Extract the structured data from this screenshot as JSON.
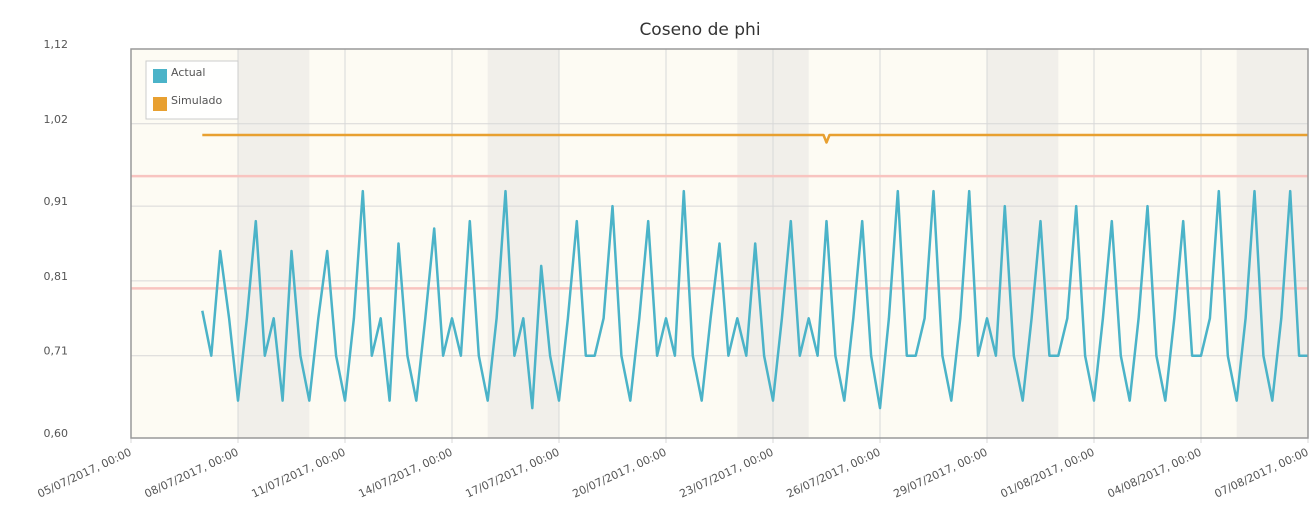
{
  "chart_data": {
    "type": "line",
    "title": "Coseno de phi",
    "xlim": [
      "2017-07-05 00:00",
      "2017-08-07 00:00"
    ],
    "xticks": [
      {
        "value": "2017-07-05 00:00",
        "label": "05/07/2017, 00:00"
      },
      {
        "value": "2017-07-08 00:00",
        "label": "08/07/2017, 00:00"
      },
      {
        "value": "2017-07-11 00:00",
        "label": "11/07/2017, 00:00"
      },
      {
        "value": "2017-07-14 00:00",
        "label": "14/07/2017, 00:00"
      },
      {
        "value": "2017-07-17 00:00",
        "label": "17/07/2017, 00:00"
      },
      {
        "value": "2017-07-20 00:00",
        "label": "20/07/2017, 00:00"
      },
      {
        "value": "2017-07-23 00:00",
        "label": "23/07/2017, 00:00"
      },
      {
        "value": "2017-07-26 00:00",
        "label": "26/07/2017, 00:00"
      },
      {
        "value": "2017-07-29 00:00",
        "label": "29/07/2017, 00:00"
      },
      {
        "value": "2017-08-01 00:00",
        "label": "01/08/2017, 00:00"
      },
      {
        "value": "2017-08-04 00:00",
        "label": "04/08/2017, 00:00"
      },
      {
        "value": "2017-08-07 00:00",
        "label": "07/08/2017, 00:00"
      }
    ],
    "ylim": [
      0.6,
      1.12
    ],
    "yticks": [
      {
        "value": 0.6,
        "label": "0,60"
      },
      {
        "value": 0.71,
        "label": "0,71"
      },
      {
        "value": 0.81,
        "label": "0,81"
      },
      {
        "value": 0.91,
        "label": "0,91"
      },
      {
        "value": 1.02,
        "label": "1,02"
      },
      {
        "value": 1.12,
        "label": "1,12"
      }
    ],
    "grid": true,
    "weekend_shading": true,
    "threshold_lines": {
      "color": "#f8c4c0",
      "values": [
        0.95,
        0.8
      ]
    },
    "legend": "top-left",
    "series": [
      {
        "name": "Actual",
        "color": "#4bb3c8",
        "x": [
          "2017-07-07 00:00",
          "2017-07-07 06:00",
          "2017-07-07 12:00",
          "2017-07-07 18:00",
          "2017-07-08 00:00",
          "2017-07-08 06:00",
          "2017-07-08 12:00",
          "2017-07-08 18:00",
          "2017-07-09 00:00",
          "2017-07-09 06:00",
          "2017-07-09 12:00",
          "2017-07-09 18:00",
          "2017-07-10 00:00",
          "2017-07-10 06:00",
          "2017-07-10 12:00",
          "2017-07-10 18:00",
          "2017-07-11 00:00",
          "2017-07-11 06:00",
          "2017-07-11 12:00",
          "2017-07-11 18:00",
          "2017-07-12 00:00",
          "2017-07-12 06:00",
          "2017-07-12 12:00",
          "2017-07-12 18:00",
          "2017-07-13 00:00",
          "2017-07-13 06:00",
          "2017-07-13 12:00",
          "2017-07-13 18:00",
          "2017-07-14 00:00",
          "2017-07-14 06:00",
          "2017-07-14 12:00",
          "2017-07-14 18:00",
          "2017-07-15 00:00",
          "2017-07-15 06:00",
          "2017-07-15 12:00",
          "2017-07-15 18:00",
          "2017-07-16 00:00",
          "2017-07-16 06:00",
          "2017-07-16 12:00",
          "2017-07-16 18:00",
          "2017-07-17 00:00",
          "2017-07-17 06:00",
          "2017-07-17 12:00",
          "2017-07-17 18:00",
          "2017-07-18 00:00",
          "2017-07-18 06:00",
          "2017-07-18 12:00",
          "2017-07-18 18:00",
          "2017-07-19 00:00",
          "2017-07-19 06:00",
          "2017-07-19 12:00",
          "2017-07-19 18:00",
          "2017-07-20 00:00",
          "2017-07-20 06:00",
          "2017-07-20 12:00",
          "2017-07-20 18:00",
          "2017-07-21 00:00",
          "2017-07-21 06:00",
          "2017-07-21 12:00",
          "2017-07-21 18:00",
          "2017-07-22 00:00",
          "2017-07-22 06:00",
          "2017-07-22 12:00",
          "2017-07-22 18:00",
          "2017-07-23 00:00",
          "2017-07-23 06:00",
          "2017-07-23 12:00",
          "2017-07-23 18:00",
          "2017-07-24 00:00",
          "2017-07-24 06:00",
          "2017-07-24 12:00",
          "2017-07-24 18:00",
          "2017-07-25 00:00",
          "2017-07-25 06:00",
          "2017-07-25 12:00",
          "2017-07-25 18:00",
          "2017-07-26 00:00",
          "2017-07-26 06:00",
          "2017-07-26 12:00",
          "2017-07-26 18:00",
          "2017-07-27 00:00",
          "2017-07-27 06:00",
          "2017-07-27 12:00",
          "2017-07-27 18:00",
          "2017-07-28 00:00",
          "2017-07-28 06:00",
          "2017-07-28 12:00",
          "2017-07-28 18:00",
          "2017-07-29 00:00",
          "2017-07-29 06:00",
          "2017-07-29 12:00",
          "2017-07-29 18:00",
          "2017-07-30 00:00",
          "2017-07-30 06:00",
          "2017-07-30 12:00",
          "2017-07-30 18:00",
          "2017-07-31 00:00",
          "2017-07-31 06:00",
          "2017-07-31 12:00",
          "2017-07-31 18:00",
          "2017-08-01 00:00",
          "2017-08-01 06:00",
          "2017-08-01 12:00",
          "2017-08-01 18:00",
          "2017-08-02 00:00",
          "2017-08-02 06:00",
          "2017-08-02 12:00",
          "2017-08-02 18:00",
          "2017-08-03 00:00",
          "2017-08-03 06:00",
          "2017-08-03 12:00",
          "2017-08-03 18:00",
          "2017-08-04 00:00",
          "2017-08-04 06:00",
          "2017-08-04 12:00",
          "2017-08-04 18:00",
          "2017-08-05 00:00",
          "2017-08-05 06:00",
          "2017-08-05 12:00",
          "2017-08-05 18:00",
          "2017-08-06 00:00",
          "2017-08-06 06:00",
          "2017-08-06 12:00",
          "2017-08-06 18:00",
          "2017-08-07 00:00"
        ],
        "values": [
          0.77,
          0.71,
          0.85,
          0.76,
          0.65,
          0.76,
          0.89,
          0.71,
          0.76,
          0.65,
          0.85,
          0.71,
          0.65,
          0.76,
          0.85,
          0.71,
          0.65,
          0.76,
          0.93,
          0.71,
          0.76,
          0.65,
          0.86,
          0.71,
          0.65,
          0.76,
          0.88,
          0.71,
          0.76,
          0.71,
          0.89,
          0.71,
          0.65,
          0.76,
          0.93,
          0.71,
          0.76,
          0.64,
          0.83,
          0.71,
          0.65,
          0.76,
          0.89,
          0.71,
          0.71,
          0.76,
          0.91,
          0.71,
          0.65,
          0.76,
          0.89,
          0.71,
          0.76,
          0.71,
          0.93,
          0.71,
          0.65,
          0.76,
          0.86,
          0.71,
          0.76,
          0.71,
          0.86,
          0.71,
          0.65,
          0.76,
          0.89,
          0.71,
          0.76,
          0.71,
          0.89,
          0.71,
          0.65,
          0.76,
          0.89,
          0.71,
          0.64,
          0.76,
          0.93,
          0.71,
          0.71,
          0.76,
          0.93,
          0.71,
          0.65,
          0.76,
          0.93,
          0.71,
          0.76,
          0.71,
          0.91,
          0.71,
          0.65,
          0.76,
          0.89,
          0.71,
          0.71,
          0.76,
          0.91,
          0.71,
          0.65,
          0.76,
          0.89,
          0.71,
          0.65,
          0.76,
          0.91,
          0.71,
          0.65,
          0.76,
          0.89,
          0.71,
          0.71,
          0.76,
          0.93,
          0.71,
          0.65,
          0.76,
          0.93,
          0.71,
          0.65,
          0.76,
          0.93,
          0.71,
          0.71
        ]
      },
      {
        "name": "Simulado",
        "color": "#e8a030",
        "x": [
          "2017-07-07 00:00",
          "2017-07-24 10:00",
          "2017-07-24 12:00",
          "2017-07-24 14:00",
          "2017-08-07 00:00"
        ],
        "values": [
          1.005,
          1.005,
          0.995,
          1.005,
          1.005
        ]
      }
    ]
  }
}
